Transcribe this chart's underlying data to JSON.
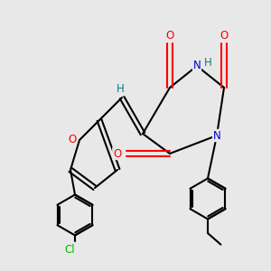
{
  "bg_color": "#e8e8e8",
  "atom_colors": {
    "O": "#ff0000",
    "N": "#0000cd",
    "Cl": "#00bb00",
    "H": "#008080",
    "C": "#000000"
  },
  "font_size": 8.5,
  "fig_size": [
    3.0,
    3.0
  ],
  "dpi": 100
}
